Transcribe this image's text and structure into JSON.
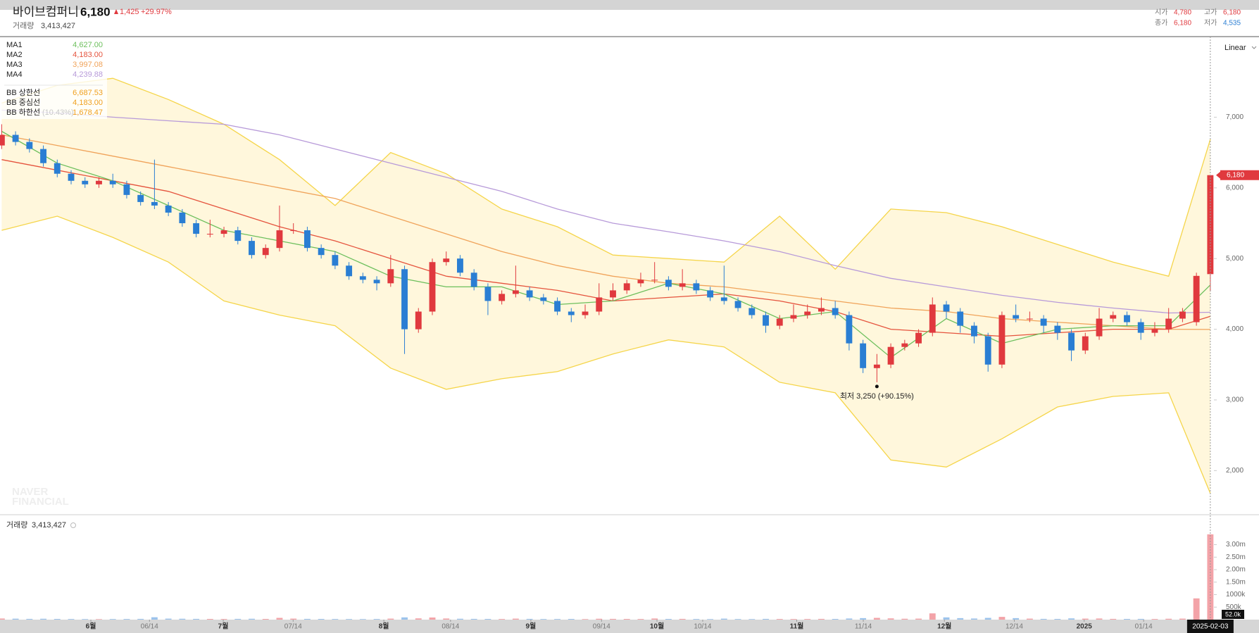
{
  "chart_data": {
    "type": "candlestick",
    "title": "바이브컴퍼니",
    "price": "6,180",
    "change": "1,425",
    "change_pct": "+29.97%",
    "volume_title": "거래량",
    "volume_total": "3,413,427",
    "summary": [
      {
        "label": "시가",
        "value": "4,780",
        "color": "#e0393e"
      },
      {
        "label": "고가",
        "value": "6,180",
        "color": "#e0393e"
      },
      {
        "label": "종가",
        "value": "6,180",
        "color": "#e0393e"
      },
      {
        "label": "저가",
        "value": "4,535",
        "color": "#2a7ed3"
      }
    ],
    "scale": "Linear",
    "watermark": [
      "NAVER",
      "FINANCIAL"
    ],
    "up_color": "#e0393e",
    "down_color": "#2a7ed3",
    "xlim": [
      -0.12,
      87.26
    ],
    "xticks": [
      {
        "value": 6.42,
        "label": "6월"
      },
      {
        "value": 10.64,
        "label": "06/14"
      },
      {
        "value": 15.95,
        "label": "7월"
      },
      {
        "value": 20.98,
        "label": "07/14"
      },
      {
        "value": 27.51,
        "label": "8월"
      },
      {
        "value": 32.31,
        "label": "08/14"
      },
      {
        "value": 38.09,
        "label": "9월"
      },
      {
        "value": 43.18,
        "label": "09/14"
      },
      {
        "value": 47.17,
        "label": "10월"
      },
      {
        "value": 50.46,
        "label": "10/14"
      },
      {
        "value": 57.23,
        "label": "11월"
      },
      {
        "value": 62.02,
        "label": "11/14"
      },
      {
        "value": 67.86,
        "label": "12월"
      },
      {
        "value": 72.89,
        "label": "12/14"
      },
      {
        "value": 77.92,
        "label": "2025"
      },
      {
        "value": 82.2,
        "label": "01/14"
      }
    ],
    "cursor_date": "2025-02-03",
    "ylim": [
      1386,
      8140
    ],
    "yticks": [
      {
        "value": 7000,
        "label": "7,000"
      },
      {
        "value": 6000,
        "label": "6,000"
      },
      {
        "value": 5000,
        "label": "5,000"
      },
      {
        "value": 4000,
        "label": "4,000"
      },
      {
        "value": 3000,
        "label": "3,000"
      },
      {
        "value": 2000,
        "label": "2,000"
      }
    ],
    "open": [
      6600,
      6750,
      6650,
      6550,
      6350,
      6200,
      6100,
      6050,
      6100,
      6050,
      5900,
      5800,
      5750,
      5650,
      5500,
      5350,
      5350,
      5400,
      5250,
      5050,
      5150,
      5400,
      5400,
      5150,
      5050,
      4900,
      4750,
      4700,
      4650,
      4850,
      4000,
      4250,
      4950,
      5000,
      4800,
      4600,
      4400,
      4500,
      4550,
      4450,
      4400,
      4250,
      4200,
      4250,
      4450,
      4550,
      4650,
      4700,
      4700,
      4600,
      4650,
      4550,
      4450,
      4400,
      4300,
      4200,
      4050,
      4150,
      4200,
      4250,
      4300,
      4200,
      3800,
      3450,
      3500,
      3750,
      3800,
      3950,
      4350,
      4250,
      4050,
      3900,
      3500,
      4200,
      4150,
      4150,
      4050,
      3950,
      3700,
      3900,
      4150,
      4200,
      4100,
      3950,
      4000,
      4150,
      4100,
      4780
    ],
    "high": [
      6900,
      6800,
      6700,
      6600,
      6400,
      6250,
      6150,
      6150,
      6200,
      6100,
      5950,
      6400,
      5800,
      5700,
      5550,
      5550,
      5450,
      5450,
      5300,
      5200,
      5750,
      5500,
      5450,
      5200,
      5100,
      4950,
      4800,
      4750,
      5050,
      4900,
      4300,
      5000,
      5100,
      5050,
      4850,
      4650,
      4550,
      4900,
      4600,
      4500,
      4450,
      4300,
      4350,
      4650,
      4650,
      4700,
      4800,
      4950,
      4750,
      4850,
      4700,
      4600,
      4900,
      4450,
      4350,
      4250,
      4200,
      4350,
      4350,
      4450,
      4400,
      4250,
      3850,
      3650,
      3800,
      3850,
      4000,
      4450,
      4400,
      4300,
      4100,
      3950,
      4250,
      4350,
      4250,
      4200,
      4100,
      4000,
      3950,
      4300,
      4250,
      4250,
      4150,
      4100,
      4300,
      4300,
      4800,
      6180
    ],
    "low": [
      6550,
      6600,
      6500,
      6300,
      6150,
      6050,
      6000,
      6000,
      6000,
      5850,
      5750,
      5700,
      5600,
      5450,
      5300,
      5300,
      5300,
      5200,
      5000,
      5000,
      5100,
      5350,
      5100,
      5000,
      4850,
      4700,
      4650,
      4550,
      4600,
      3650,
      3950,
      4200,
      4900,
      4750,
      4550,
      4200,
      4350,
      4450,
      4400,
      4350,
      4200,
      4100,
      4150,
      4200,
      4400,
      4500,
      4600,
      4650,
      4550,
      4550,
      4500,
      4400,
      4350,
      4250,
      4150,
      3950,
      4000,
      4100,
      4150,
      4200,
      4150,
      3700,
      3380,
      3250,
      3450,
      3700,
      3750,
      3900,
      4150,
      3950,
      3800,
      3400,
      3450,
      4100,
      4100,
      3950,
      3850,
      3550,
      3650,
      3850,
      4100,
      4050,
      3850,
      3900,
      3950,
      4100,
      4050,
      4535
    ],
    "close": [
      6750,
      6650,
      6550,
      6350,
      6200,
      6100,
      6050,
      6100,
      6050,
      5900,
      5800,
      5750,
      5650,
      5500,
      5350,
      5350,
      5400,
      5250,
      5050,
      5150,
      5400,
      5400,
      5150,
      5050,
      4900,
      4750,
      4700,
      4650,
      4850,
      4000,
      4250,
      4950,
      5000,
      4800,
      4600,
      4400,
      4500,
      4550,
      4450,
      4400,
      4250,
      4200,
      4250,
      4450,
      4550,
      4650,
      4700,
      4700,
      4600,
      4650,
      4550,
      4450,
      4400,
      4300,
      4200,
      4050,
      4150,
      4200,
      4250,
      4300,
      4200,
      3800,
      3450,
      3500,
      3750,
      3800,
      3950,
      4350,
      4250,
      4050,
      3900,
      3500,
      4200,
      4150,
      4150,
      4050,
      3950,
      3700,
      3900,
      4150,
      4200,
      4100,
      3950,
      4000,
      4150,
      4250,
      4755,
      6180
    ],
    "low_annotation": "최저 3,250 (+90.15%)",
    "line_x": [
      0,
      4,
      8,
      12,
      16,
      20,
      24,
      28,
      32,
      36,
      40,
      44,
      48,
      52,
      56,
      60,
      64,
      68,
      72,
      76,
      80,
      84,
      87
    ],
    "moving_averages": [
      {
        "name": "MA1",
        "color": "#6cbf5c",
        "value_label": "4,627.00",
        "values": [
          6800,
          6350,
          6100,
          5750,
          5400,
          5250,
          5100,
          4750,
          4600,
          4600,
          4350,
          4400,
          4650,
          4500,
          4150,
          4250,
          3600,
          4150,
          3800,
          4000,
          4050,
          4050,
          4627
        ]
      },
      {
        "name": "MA2",
        "color": "#e5533d",
        "value_label": "4,183.00",
        "values": [
          6400,
          6250,
          6100,
          5950,
          5700,
          5450,
          5250,
          5000,
          4750,
          4650,
          4550,
          4400,
          4450,
          4500,
          4400,
          4250,
          4000,
          3950,
          3900,
          3950,
          4000,
          4000,
          4183
        ]
      },
      {
        "name": "MA3",
        "color": "#f0a35a",
        "value_label": "3,997.08",
        "values": [
          6750,
          6600,
          6450,
          6300,
          6150,
          6000,
          5850,
          5600,
          5350,
          5100,
          4900,
          4750,
          4650,
          4600,
          4500,
          4400,
          4300,
          4250,
          4150,
          4100,
          4050,
          4000,
          3997
        ]
      },
      {
        "name": "MA4",
        "color": "#b79ad9",
        "value_label": "4,239.88",
        "values": [
          7100,
          7060,
          7000,
          6950,
          6900,
          6750,
          6550,
          6350,
          6150,
          5950,
          5700,
          5500,
          5380,
          5250,
          5100,
          4900,
          4720,
          4600,
          4480,
          4380,
          4300,
          4230,
          4240
        ]
      }
    ],
    "bollinger": {
      "color": "#f5d54a",
      "fill": "#fff7dc",
      "label_color": "#f0a020",
      "upper": {
        "name": "BB 상한선",
        "value_label": "6,687.53",
        "values": [
          7200,
          7450,
          7550,
          7250,
          6900,
          6400,
          5750,
          6500,
          6200,
          5700,
          5450,
          5050,
          5000,
          4950,
          5600,
          4850,
          5700,
          5650,
          5450,
          5200,
          4950,
          4750,
          6688
        ]
      },
      "middle": {
        "name": "BB 중심선",
        "value_label": "4,183.00"
      },
      "lower": {
        "name": "BB 하한선",
        "note": "(10.43%)",
        "value_label": "1,678.47",
        "values": [
          5400,
          5600,
          5300,
          4950,
          4400,
          4200,
          4050,
          3450,
          3150,
          3300,
          3400,
          3650,
          3850,
          3750,
          3250,
          3100,
          2150,
          2050,
          2450,
          2900,
          3050,
          3100,
          1678
        ]
      }
    },
    "volume": [
      45000,
      38000,
      30000,
      35000,
      28000,
      25000,
      22000,
      20000,
      24000,
      26000,
      30000,
      95000,
      40000,
      35000,
      30000,
      28000,
      25000,
      30000,
      35000,
      28000,
      70000,
      40000,
      30000,
      28000,
      25000,
      24000,
      22000,
      26000,
      40000,
      90000,
      50000,
      85000,
      45000,
      35000,
      30000,
      28000,
      25000,
      40000,
      30000,
      24000,
      25000,
      28000,
      22000,
      35000,
      30000,
      28000,
      26000,
      45000,
      28000,
      30000,
      25000,
      22000,
      40000,
      24000,
      22000,
      30000,
      26000,
      24000,
      25000,
      30000,
      28000,
      45000,
      60000,
      70000,
      50000,
      35000,
      40000,
      250000,
      90000,
      60000,
      45000,
      70000,
      110000,
      60000,
      40000,
      30000,
      28000,
      50000,
      40000,
      45000,
      30000,
      28000,
      30000,
      25000,
      35000,
      40000,
      850000,
      3413427
    ],
    "volume_ylim": [
      0,
      4170000
    ],
    "volume_yticks": [
      {
        "value": 3000000,
        "label": "3.00m"
      },
      {
        "value": 2500000,
        "label": "2.50m"
      },
      {
        "value": 2000000,
        "label": "2.00m"
      },
      {
        "value": 1500000,
        "label": "1.50m"
      },
      {
        "value": 1000000,
        "label": "1000k"
      },
      {
        "value": 500000,
        "label": "500k"
      }
    ],
    "volume_cursor_label": "52.0k"
  }
}
